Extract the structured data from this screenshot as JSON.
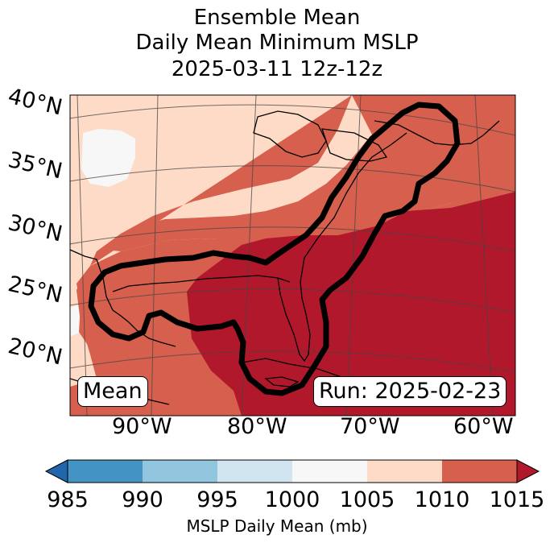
{
  "title": {
    "line1": "Ensemble Mean",
    "line2": "Daily Mean Minimum MSLP",
    "line3": "2025-03-11 12z-12z"
  },
  "map": {
    "lat_labels": [
      "40°N",
      "35°N",
      "30°N",
      "25°N",
      "20°N"
    ],
    "lon_labels": [
      "90°W",
      "80°W",
      "70°W",
      "60°W"
    ],
    "mean_label": "Mean",
    "run_label": "Run: 2025-02-23",
    "contour_color": "#000000"
  },
  "colorbar": {
    "ticks": [
      "985",
      "990",
      "995",
      "1000",
      "1005",
      "1010",
      "1015"
    ],
    "label": "MSLP Daily Mean (mb)",
    "colors": [
      "#2166ac",
      "#4393c3",
      "#92c5de",
      "#d1e5f0",
      "#f7f7f7",
      "#fddbc7",
      "#d6604d",
      "#b2182b"
    ]
  }
}
